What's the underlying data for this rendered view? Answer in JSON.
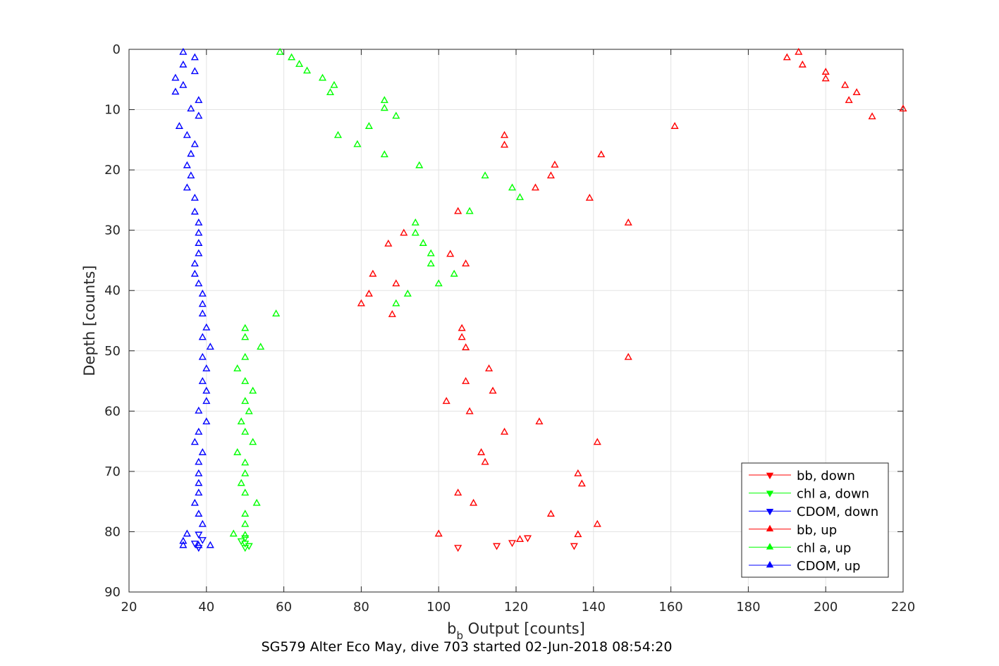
{
  "chart_data": {
    "type": "scatter",
    "xlabel_main": "b",
    "xlabel_sub": "b",
    "xlabel_rest": " Output [counts]",
    "ylabel": "Depth [counts]",
    "footer": "SG579 Alter Eco May, dive 703 started 02-Jun-2018 08:54:20",
    "xlim": [
      20,
      220
    ],
    "ylim": [
      0,
      90
    ],
    "y_reversed": true,
    "grid": true,
    "xticks": [
      "20",
      "40",
      "60",
      "80",
      "100",
      "120",
      "140",
      "160",
      "180",
      "200",
      "220"
    ],
    "yticks": [
      "0",
      "10",
      "20",
      "30",
      "40",
      "50",
      "60",
      "70",
      "80",
      "90"
    ],
    "legend_position": "bottom-right",
    "legend": [
      {
        "label": "bb, down",
        "color": "#ff0000",
        "marker": "down"
      },
      {
        "label": "chl a, down",
        "color": "#00ff00",
        "marker": "down"
      },
      {
        "label": "CDOM, down",
        "color": "#0000ff",
        "marker": "down"
      },
      {
        "label": "bb, up",
        "color": "#ff0000",
        "marker": "up"
      },
      {
        "label": "chl a, up",
        "color": "#00ff00",
        "marker": "up"
      },
      {
        "label": "CDOM, up",
        "color": "#0000ff",
        "marker": "up"
      }
    ],
    "series": [
      {
        "name": "bb, down",
        "color": "#ff0000",
        "marker": "down",
        "points": [
          [
            105,
            82.6
          ],
          [
            115,
            82.3
          ],
          [
            119,
            81.8
          ],
          [
            123,
            81.0
          ],
          [
            135,
            82.3
          ]
        ]
      },
      {
        "name": "chl a, down",
        "color": "#00ff00",
        "marker": "down",
        "points": [
          [
            50,
            82.6
          ],
          [
            51,
            82.3
          ],
          [
            50,
            81.9
          ],
          [
            49,
            81.5
          ],
          [
            50,
            81.0
          ]
        ]
      },
      {
        "name": "CDOM, down",
        "color": "#0000ff",
        "marker": "down",
        "points": [
          [
            38,
            82.6
          ],
          [
            37,
            81.9
          ],
          [
            39,
            81.3
          ],
          [
            38,
            80.4
          ]
        ]
      },
      {
        "name": "bb, up",
        "color": "#ff0000",
        "marker": "up",
        "points": [
          [
            193,
            0.5
          ],
          [
            190,
            1.4
          ],
          [
            194,
            2.6
          ],
          [
            200,
            3.8
          ],
          [
            200,
            4.9
          ],
          [
            205,
            6.0
          ],
          [
            208,
            7.2
          ],
          [
            206,
            8.5
          ],
          [
            220,
            9.9
          ],
          [
            212,
            11.2
          ],
          [
            161,
            12.8
          ],
          [
            117,
            14.3
          ],
          [
            117,
            15.9
          ],
          [
            142,
            17.5
          ],
          [
            130,
            19.2
          ],
          [
            129,
            21.0
          ],
          [
            125,
            23.0
          ],
          [
            139,
            24.7
          ],
          [
            105,
            26.9
          ],
          [
            149,
            28.8
          ],
          [
            91,
            30.5
          ],
          [
            87,
            32.3
          ],
          [
            103,
            34.0
          ],
          [
            107,
            35.6
          ],
          [
            83,
            37.3
          ],
          [
            89,
            38.9
          ],
          [
            82,
            40.6
          ],
          [
            80,
            42.2
          ],
          [
            88,
            44.0
          ],
          [
            106,
            46.3
          ],
          [
            106,
            47.8
          ],
          [
            107,
            49.5
          ],
          [
            149,
            51.1
          ],
          [
            113,
            53.0
          ],
          [
            107,
            55.1
          ],
          [
            114,
            56.7
          ],
          [
            102,
            58.4
          ],
          [
            108,
            60.1
          ],
          [
            126,
            61.8
          ],
          [
            117,
            63.5
          ],
          [
            141,
            65.2
          ],
          [
            111,
            66.9
          ],
          [
            112,
            68.5
          ],
          [
            136,
            70.4
          ],
          [
            137,
            72.1
          ],
          [
            105,
            73.6
          ],
          [
            109,
            75.3
          ],
          [
            129,
            77.1
          ],
          [
            141,
            78.8
          ],
          [
            100,
            80.4
          ],
          [
            136,
            80.5
          ],
          [
            121,
            81.3
          ]
        ]
      },
      {
        "name": "chl a, up",
        "color": "#00ff00",
        "marker": "up",
        "points": [
          [
            59,
            0.5
          ],
          [
            62,
            1.4
          ],
          [
            64,
            2.5
          ],
          [
            66,
            3.6
          ],
          [
            70,
            4.8
          ],
          [
            73,
            6.0
          ],
          [
            72,
            7.2
          ],
          [
            86,
            8.5
          ],
          [
            86,
            9.8
          ],
          [
            89,
            11.1
          ],
          [
            82,
            12.8
          ],
          [
            74,
            14.3
          ],
          [
            79,
            15.8
          ],
          [
            86,
            17.5
          ],
          [
            95,
            19.3
          ],
          [
            112,
            21.0
          ],
          [
            119,
            23.0
          ],
          [
            121,
            24.6
          ],
          [
            108,
            26.9
          ],
          [
            94,
            28.8
          ],
          [
            94,
            30.5
          ],
          [
            96,
            32.2
          ],
          [
            98,
            33.9
          ],
          [
            98,
            35.6
          ],
          [
            104,
            37.3
          ],
          [
            100,
            38.9
          ],
          [
            92,
            40.6
          ],
          [
            89,
            42.2
          ],
          [
            58,
            43.9
          ],
          [
            50,
            46.3
          ],
          [
            50,
            47.8
          ],
          [
            54,
            49.4
          ],
          [
            50,
            51.1
          ],
          [
            48,
            53.0
          ],
          [
            50,
            55.1
          ],
          [
            52,
            56.7
          ],
          [
            50,
            58.4
          ],
          [
            51,
            60.1
          ],
          [
            49,
            61.8
          ],
          [
            50,
            63.5
          ],
          [
            52,
            65.2
          ],
          [
            48,
            66.9
          ],
          [
            50,
            68.6
          ],
          [
            50,
            70.4
          ],
          [
            49,
            72.0
          ],
          [
            50,
            73.6
          ],
          [
            53,
            75.3
          ],
          [
            50,
            77.1
          ],
          [
            50,
            78.8
          ],
          [
            47,
            80.4
          ],
          [
            50,
            80.6
          ]
        ]
      },
      {
        "name": "CDOM, up",
        "color": "#0000ff",
        "marker": "up",
        "points": [
          [
            34,
            0.5
          ],
          [
            37,
            1.4
          ],
          [
            34,
            2.6
          ],
          [
            37,
            3.7
          ],
          [
            32,
            4.8
          ],
          [
            34,
            6.0
          ],
          [
            32,
            7.1
          ],
          [
            38,
            8.5
          ],
          [
            36,
            9.9
          ],
          [
            38,
            11.1
          ],
          [
            33,
            12.8
          ],
          [
            35,
            14.3
          ],
          [
            37,
            15.8
          ],
          [
            36,
            17.4
          ],
          [
            35,
            19.3
          ],
          [
            36,
            21.0
          ],
          [
            35,
            23.0
          ],
          [
            37,
            24.7
          ],
          [
            37,
            27.0
          ],
          [
            38,
            28.8
          ],
          [
            38,
            30.5
          ],
          [
            38,
            32.2
          ],
          [
            38,
            33.9
          ],
          [
            37,
            35.6
          ],
          [
            37,
            37.3
          ],
          [
            38,
            38.9
          ],
          [
            39,
            40.6
          ],
          [
            39,
            42.3
          ],
          [
            39,
            43.9
          ],
          [
            40,
            46.2
          ],
          [
            39,
            47.8
          ],
          [
            41,
            49.4
          ],
          [
            39,
            51.1
          ],
          [
            40,
            53.0
          ],
          [
            39,
            55.1
          ],
          [
            40,
            56.7
          ],
          [
            40,
            58.4
          ],
          [
            38,
            60.0
          ],
          [
            40,
            61.8
          ],
          [
            38,
            63.5
          ],
          [
            37,
            65.2
          ],
          [
            39,
            66.9
          ],
          [
            38,
            68.5
          ],
          [
            38,
            70.4
          ],
          [
            38,
            72.0
          ],
          [
            38,
            73.6
          ],
          [
            37,
            75.3
          ],
          [
            38,
            77.1
          ],
          [
            39,
            78.8
          ],
          [
            35,
            80.4
          ],
          [
            34,
            81.6
          ],
          [
            34,
            82.3
          ],
          [
            38,
            82.3
          ],
          [
            41,
            82.3
          ]
        ]
      }
    ]
  }
}
